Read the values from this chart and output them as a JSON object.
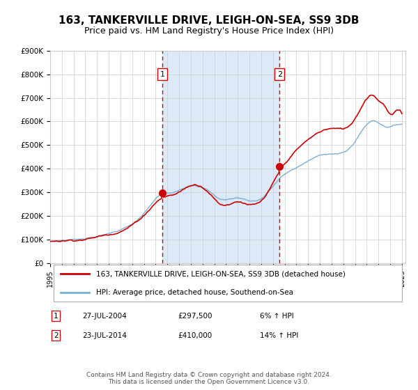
{
  "title": "163, TANKERVILLE DRIVE, LEIGH-ON-SEA, SS9 3DB",
  "subtitle": "Price paid vs. HM Land Registry's House Price Index (HPI)",
  "title_fontsize": 11,
  "subtitle_fontsize": 9,
  "ylim": [
    0,
    900000
  ],
  "yticks": [
    0,
    100000,
    200000,
    300000,
    400000,
    500000,
    600000,
    700000,
    800000,
    900000
  ],
  "ytick_labels": [
    "£0",
    "£100K",
    "£200K",
    "£300K",
    "£400K",
    "£500K",
    "£600K",
    "£700K",
    "£800K",
    "£900K"
  ],
  "purchase1_date": 2004.558,
  "purchase1_price": 297500,
  "purchase1_label": "1",
  "purchase2_date": 2014.558,
  "purchase2_price": 410000,
  "purchase2_label": "2",
  "shaded_region_color": "#dce9f7",
  "vline_color": "#cc0000",
  "legend_line1": "163, TANKERVILLE DRIVE, LEIGH-ON-SEA, SS9 3DB (detached house)",
  "legend_line2": "HPI: Average price, detached house, Southend-on-Sea",
  "line1_color": "#cc0000",
  "line2_color": "#7bafd4",
  "table_row1": [
    "1",
    "27-JUL-2004",
    "£297,500",
    "6% ↑ HPI"
  ],
  "table_row2": [
    "2",
    "23-JUL-2014",
    "£410,000",
    "14% ↑ HPI"
  ],
  "footer": "Contains HM Land Registry data © Crown copyright and database right 2024.\nThis data is licensed under the Open Government Licence v3.0.",
  "background_color": "#ffffff",
  "grid_color": "#cccccc",
  "hpi_control_years": [
    1995.0,
    1997.0,
    1999.0,
    2001.0,
    2003.0,
    2004.5,
    2005.5,
    2007.0,
    2008.5,
    2009.5,
    2011.0,
    2012.0,
    2013.0,
    2014.5,
    2016.0,
    2017.5,
    2019.0,
    2020.5,
    2021.5,
    2022.5,
    2023.5,
    2024.5,
    2025.0
  ],
  "hpi_control_vals": [
    90000,
    100000,
    115000,
    145000,
    210000,
    290000,
    295000,
    330000,
    310000,
    275000,
    280000,
    270000,
    280000,
    360000,
    410000,
    450000,
    470000,
    490000,
    560000,
    610000,
    590000,
    595000,
    600000
  ],
  "prop_control_years": [
    1995.0,
    1997.0,
    1999.0,
    2001.0,
    2003.0,
    2004.558,
    2005.5,
    2007.0,
    2008.5,
    2009.5,
    2011.0,
    2012.0,
    2013.0,
    2014.558,
    2016.0,
    2017.5,
    2019.0,
    2020.5,
    2021.5,
    2022.5,
    2023.0,
    2023.5,
    2024.0,
    2024.5,
    2025.0
  ],
  "prop_control_vals": [
    90000,
    102000,
    118000,
    150000,
    220000,
    297500,
    310000,
    350000,
    330000,
    280000,
    295000,
    285000,
    295000,
    410000,
    500000,
    560000,
    590000,
    600000,
    680000,
    740000,
    720000,
    700000,
    660000,
    670000,
    660000
  ]
}
